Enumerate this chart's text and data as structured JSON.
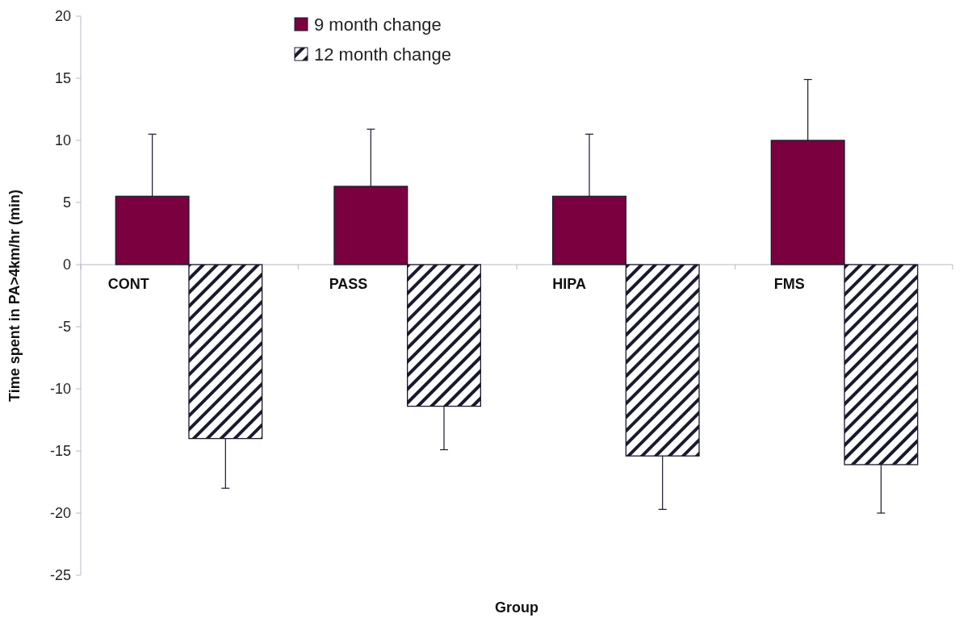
{
  "chart_data": {
    "type": "bar",
    "xlabel": "Group",
    "ylabel": "Time spent in PA>4km/hr (min)",
    "categories": [
      "CONT",
      "PASS",
      "HIPA",
      "FMS"
    ],
    "series": [
      {
        "name": "9 month change",
        "color": "#7a0040",
        "values": [
          5.5,
          6.3,
          5.5,
          10.0
        ],
        "errors": [
          [
            5.5,
            10.5
          ],
          [
            6.3,
            10.9
          ],
          [
            5.5,
            10.5
          ],
          [
            10.0,
            14.9
          ]
        ]
      },
      {
        "name": "12 month change",
        "color": "#1a1a2e",
        "values": [
          -14.0,
          -11.4,
          -15.4,
          -16.1
        ],
        "errors": [
          [
            -18.0,
            -14.0
          ],
          [
            -14.9,
            -11.4
          ],
          [
            -19.7,
            -15.4
          ],
          [
            -20.0,
            -16.1
          ]
        ]
      }
    ],
    "ylim": [
      -25,
      20
    ],
    "yticks": [
      -25,
      -20,
      -15,
      -10,
      -5,
      0,
      5,
      10,
      15,
      20
    ],
    "grid": false,
    "legend": "top"
  }
}
